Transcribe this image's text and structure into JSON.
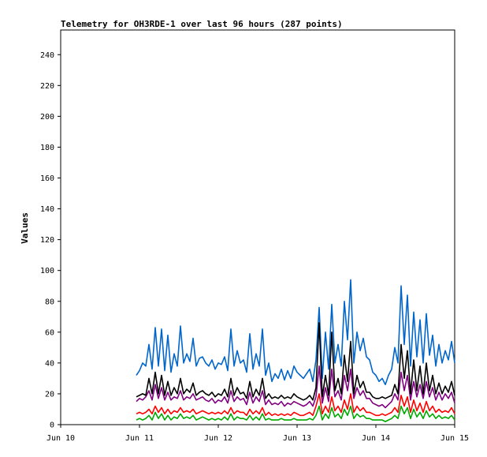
{
  "chart_data": {
    "type": "line",
    "title": "Telemetry for OH3RDE-1 over last 96 hours (287 points)",
    "xlabel": "",
    "ylabel": "Values",
    "xlim": [
      0,
      5
    ],
    "ylim": [
      0,
      256
    ],
    "x_ticks": [
      {
        "value": 0,
        "label": "Jun 10"
      },
      {
        "value": 1,
        "label": "Jun 11"
      },
      {
        "value": 2,
        "label": "Jun 12"
      },
      {
        "value": 3,
        "label": "Jun 13"
      },
      {
        "value": 4,
        "label": "Jun 14"
      },
      {
        "value": 5,
        "label": "Jun 15"
      }
    ],
    "y_ticks": [
      0,
      20,
      40,
      60,
      80,
      100,
      120,
      140,
      160,
      180,
      200,
      220,
      240
    ],
    "grid": false,
    "legend": "none",
    "x_unit": "days",
    "series": [
      {
        "color": "#0066cc",
        "x": [
          0.96,
          1.0,
          1.04,
          1.08,
          1.12,
          1.16,
          1.2,
          1.24,
          1.28,
          1.32,
          1.36,
          1.4,
          1.44,
          1.48,
          1.52,
          1.56,
          1.6,
          1.64,
          1.68,
          1.72,
          1.76,
          1.8,
          1.84,
          1.88,
          1.92,
          1.96,
          2.0,
          2.04,
          2.08,
          2.12,
          2.16,
          2.2,
          2.24,
          2.28,
          2.32,
          2.36,
          2.4,
          2.44,
          2.48,
          2.52,
          2.56,
          2.6,
          2.64,
          2.68,
          2.72,
          2.76,
          2.8,
          2.84,
          2.88,
          2.92,
          2.96,
          3.0,
          3.04,
          3.08,
          3.12,
          3.16,
          3.2,
          3.24,
          3.28,
          3.32,
          3.36,
          3.4,
          3.44,
          3.48,
          3.52,
          3.56,
          3.6,
          3.64,
          3.68,
          3.72,
          3.76,
          3.8,
          3.84,
          3.88,
          3.92,
          3.96,
          4.0,
          4.04,
          4.08,
          4.12,
          4.16,
          4.2,
          4.24,
          4.28,
          4.32,
          4.36,
          4.4,
          4.44,
          4.48,
          4.52,
          4.56,
          4.6,
          4.64,
          4.68,
          4.72,
          4.76,
          4.8,
          4.84,
          4.88,
          4.92,
          4.96,
          5.0
        ],
        "y": [
          32,
          35,
          40,
          38,
          52,
          36,
          63,
          38,
          62,
          35,
          58,
          34,
          46,
          38,
          64,
          40,
          46,
          41,
          56,
          38,
          43,
          44,
          40,
          38,
          42,
          36,
          40,
          39,
          44,
          35,
          62,
          38,
          48,
          40,
          42,
          34,
          59,
          36,
          46,
          38,
          62,
          32,
          40,
          28,
          33,
          30,
          36,
          29,
          35,
          30,
          38,
          34,
          32,
          30,
          33,
          36,
          28,
          42,
          76,
          30,
          60,
          36,
          78,
          40,
          52,
          38,
          80,
          55,
          94,
          40,
          60,
          48,
          56,
          44,
          42,
          34,
          32,
          28,
          30,
          26,
          32,
          36,
          50,
          40,
          90,
          52,
          84,
          38,
          73,
          44,
          68,
          40,
          72,
          45,
          58,
          38,
          52,
          40,
          48,
          42,
          54,
          40
        ]
      },
      {
        "color": "#800080",
        "x": [
          0.96,
          1.0,
          1.04,
          1.08,
          1.12,
          1.16,
          1.2,
          1.24,
          1.28,
          1.32,
          1.36,
          1.4,
          1.44,
          1.48,
          1.52,
          1.56,
          1.6,
          1.64,
          1.68,
          1.72,
          1.76,
          1.8,
          1.84,
          1.88,
          1.92,
          1.96,
          2.0,
          2.04,
          2.08,
          2.12,
          2.16,
          2.2,
          2.24,
          2.28,
          2.32,
          2.36,
          2.4,
          2.44,
          2.48,
          2.52,
          2.56,
          2.6,
          2.64,
          2.68,
          2.72,
          2.76,
          2.8,
          2.84,
          2.88,
          2.92,
          2.96,
          3.0,
          3.04,
          3.08,
          3.12,
          3.16,
          3.2,
          3.24,
          3.28,
          3.32,
          3.36,
          3.4,
          3.44,
          3.48,
          3.52,
          3.56,
          3.6,
          3.64,
          3.68,
          3.72,
          3.76,
          3.8,
          3.84,
          3.88,
          3.92,
          3.96,
          4.0,
          4.04,
          4.08,
          4.12,
          4.16,
          4.2,
          4.24,
          4.28,
          4.32,
          4.36,
          4.4,
          4.44,
          4.48,
          4.52,
          4.56,
          4.6,
          4.64,
          4.68,
          4.72,
          4.76,
          4.8,
          4.84,
          4.88,
          4.92,
          4.96,
          5.0
        ],
        "y": [
          15,
          17,
          16,
          18,
          22,
          16,
          26,
          17,
          24,
          16,
          21,
          16,
          18,
          17,
          22,
          16,
          18,
          17,
          20,
          16,
          17,
          18,
          16,
          15,
          17,
          14,
          16,
          15,
          18,
          14,
          22,
          15,
          18,
          16,
          17,
          13,
          21,
          14,
          18,
          15,
          22,
          13,
          16,
          13,
          14,
          13,
          15,
          12,
          14,
          13,
          15,
          14,
          13,
          12,
          13,
          15,
          12,
          18,
          38,
          14,
          24,
          15,
          36,
          18,
          22,
          16,
          32,
          22,
          36,
          17,
          24,
          19,
          22,
          17,
          17,
          14,
          13,
          12,
          13,
          11,
          13,
          15,
          20,
          16,
          34,
          22,
          32,
          16,
          28,
          18,
          26,
          17,
          28,
          18,
          24,
          16,
          21,
          16,
          20,
          17,
          21,
          14
        ]
      },
      {
        "color": "#000000",
        "x": [
          0.96,
          1.0,
          1.04,
          1.08,
          1.12,
          1.16,
          1.2,
          1.24,
          1.28,
          1.32,
          1.36,
          1.4,
          1.44,
          1.48,
          1.52,
          1.56,
          1.6,
          1.64,
          1.68,
          1.72,
          1.76,
          1.8,
          1.84,
          1.88,
          1.92,
          1.96,
          2.0,
          2.04,
          2.08,
          2.12,
          2.16,
          2.2,
          2.24,
          2.28,
          2.32,
          2.36,
          2.4,
          2.44,
          2.48,
          2.52,
          2.56,
          2.6,
          2.64,
          2.68,
          2.72,
          2.76,
          2.8,
          2.84,
          2.88,
          2.92,
          2.96,
          3.0,
          3.04,
          3.08,
          3.12,
          3.16,
          3.2,
          3.24,
          3.28,
          3.32,
          3.36,
          3.4,
          3.44,
          3.48,
          3.52,
          3.56,
          3.6,
          3.64,
          3.68,
          3.72,
          3.76,
          3.8,
          3.84,
          3.88,
          3.92,
          3.96,
          4.0,
          4.04,
          4.08,
          4.12,
          4.16,
          4.2,
          4.24,
          4.28,
          4.32,
          4.36,
          4.4,
          4.44,
          4.48,
          4.52,
          4.56,
          4.6,
          4.64,
          4.68,
          4.72,
          4.76,
          4.8,
          4.84,
          4.88,
          4.92,
          4.96,
          5.0
        ],
        "y": [
          18,
          19,
          20,
          19,
          30,
          20,
          34,
          20,
          32,
          19,
          28,
          19,
          24,
          20,
          30,
          20,
          23,
          21,
          27,
          19,
          21,
          22,
          20,
          19,
          21,
          18,
          20,
          19,
          23,
          18,
          30,
          19,
          24,
          20,
          21,
          17,
          28,
          18,
          23,
          19,
          30,
          17,
          20,
          17,
          18,
          17,
          19,
          17,
          18,
          17,
          20,
          18,
          17,
          16,
          17,
          19,
          16,
          24,
          66,
          18,
          32,
          19,
          60,
          22,
          30,
          20,
          45,
          28,
          54,
          20,
          32,
          24,
          28,
          21,
          21,
          18,
          17,
          17,
          18,
          17,
          18,
          19,
          26,
          20,
          52,
          30,
          48,
          20,
          42,
          22,
          38,
          20,
          40,
          22,
          32,
          20,
          27,
          20,
          25,
          21,
          28,
          19
        ]
      },
      {
        "color": "#ff0000",
        "x": [
          0.96,
          1.0,
          1.04,
          1.08,
          1.12,
          1.16,
          1.2,
          1.24,
          1.28,
          1.32,
          1.36,
          1.4,
          1.44,
          1.48,
          1.52,
          1.56,
          1.6,
          1.64,
          1.68,
          1.72,
          1.76,
          1.8,
          1.84,
          1.88,
          1.92,
          1.96,
          2.0,
          2.04,
          2.08,
          2.12,
          2.16,
          2.2,
          2.24,
          2.28,
          2.32,
          2.36,
          2.4,
          2.44,
          2.48,
          2.52,
          2.56,
          2.6,
          2.64,
          2.68,
          2.72,
          2.76,
          2.8,
          2.84,
          2.88,
          2.92,
          2.96,
          3.0,
          3.04,
          3.08,
          3.12,
          3.16,
          3.2,
          3.24,
          3.28,
          3.32,
          3.36,
          3.4,
          3.44,
          3.48,
          3.52,
          3.56,
          3.6,
          3.64,
          3.68,
          3.72,
          3.76,
          3.8,
          3.84,
          3.88,
          3.92,
          3.96,
          4.0,
          4.04,
          4.08,
          4.12,
          4.16,
          4.2,
          4.24,
          4.28,
          4.32,
          4.36,
          4.4,
          4.44,
          4.48,
          4.52,
          4.56,
          4.6,
          4.64,
          4.68,
          4.72,
          4.76,
          4.8,
          4.84,
          4.88,
          4.92,
          4.96,
          5.0
        ],
        "y": [
          7,
          8,
          7,
          8,
          10,
          7,
          12,
          8,
          11,
          7,
          10,
          7,
          9,
          8,
          11,
          8,
          9,
          8,
          10,
          7,
          8,
          9,
          8,
          7,
          8,
          7,
          8,
          7,
          9,
          7,
          11,
          7,
          9,
          8,
          8,
          6,
          10,
          7,
          9,
          7,
          11,
          6,
          8,
          6,
          7,
          6,
          7,
          6,
          7,
          6,
          8,
          7,
          6,
          6,
          7,
          8,
          6,
          12,
          20,
          7,
          12,
          8,
          18,
          9,
          12,
          8,
          16,
          10,
          20,
          8,
          12,
          9,
          11,
          8,
          8,
          7,
          6,
          6,
          7,
          6,
          7,
          8,
          11,
          8,
          19,
          12,
          18,
          8,
          16,
          9,
          14,
          8,
          15,
          9,
          12,
          8,
          10,
          8,
          9,
          8,
          11,
          7
        ]
      },
      {
        "color": "#00aa00",
        "x": [
          0.96,
          1.0,
          1.04,
          1.08,
          1.12,
          1.16,
          1.2,
          1.24,
          1.28,
          1.32,
          1.36,
          1.4,
          1.44,
          1.48,
          1.52,
          1.56,
          1.6,
          1.64,
          1.68,
          1.72,
          1.76,
          1.8,
          1.84,
          1.88,
          1.92,
          1.96,
          2.0,
          2.04,
          2.08,
          2.12,
          2.16,
          2.2,
          2.24,
          2.28,
          2.32,
          2.36,
          2.4,
          2.44,
          2.48,
          2.52,
          2.56,
          2.6,
          2.64,
          2.68,
          2.72,
          2.76,
          2.8,
          2.84,
          2.88,
          2.92,
          2.96,
          3.0,
          3.04,
          3.08,
          3.12,
          3.16,
          3.2,
          3.24,
          3.28,
          3.32,
          3.36,
          3.4,
          3.44,
          3.48,
          3.52,
          3.56,
          3.6,
          3.64,
          3.68,
          3.72,
          3.76,
          3.8,
          3.84,
          3.88,
          3.92,
          3.96,
          4.0,
          4.04,
          4.08,
          4.12,
          4.16,
          4.2,
          4.24,
          4.28,
          4.32,
          4.36,
          4.4,
          4.44,
          4.48,
          4.52,
          4.56,
          4.6,
          4.64,
          4.68,
          4.72,
          4.76,
          4.8,
          4.84,
          4.88,
          4.92,
          4.96,
          5.0
        ],
        "y": [
          3,
          4,
          3,
          4,
          6,
          3,
          8,
          4,
          7,
          3,
          6,
          3,
          5,
          4,
          7,
          4,
          5,
          4,
          6,
          3,
          4,
          5,
          4,
          3,
          4,
          3,
          4,
          3,
          5,
          3,
          7,
          3,
          5,
          4,
          4,
          3,
          6,
          3,
          5,
          3,
          7,
          3,
          4,
          3,
          3,
          3,
          4,
          3,
          3,
          3,
          4,
          3,
          3,
          3,
          3,
          4,
          3,
          6,
          12,
          3,
          7,
          4,
          11,
          5,
          7,
          4,
          10,
          6,
          12,
          4,
          7,
          5,
          6,
          4,
          4,
          3,
          3,
          3,
          3,
          2,
          3,
          4,
          6,
          4,
          12,
          7,
          11,
          4,
          10,
          5,
          8,
          4,
          9,
          5,
          7,
          4,
          6,
          4,
          5,
          4,
          6,
          3
        ]
      }
    ]
  }
}
